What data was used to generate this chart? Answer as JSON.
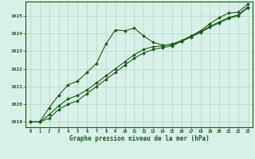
{
  "title": "Graphe pression niveau de la mer (hPa)",
  "bg_color": "#d8f0e8",
  "plot_bg_color": "#d8f0e8",
  "grid_color": "#b8d4b8",
  "line_color": "#1a5c1a",
  "xlim": [
    -0.5,
    23.5
  ],
  "ylim": [
    1018.7,
    1025.8
  ],
  "yticks": [
    1019,
    1020,
    1021,
    1022,
    1023,
    1024,
    1025
  ],
  "xticks": [
    0,
    1,
    2,
    3,
    4,
    5,
    6,
    7,
    8,
    9,
    10,
    11,
    12,
    13,
    14,
    15,
    16,
    17,
    18,
    19,
    20,
    21,
    22,
    23
  ],
  "series1": {
    "x": [
      0,
      1,
      2,
      3,
      4,
      5,
      6,
      7,
      8,
      9,
      10,
      11,
      12,
      13,
      14,
      15,
      16,
      17,
      18,
      19,
      20,
      21,
      22,
      23
    ],
    "y": [
      1019.0,
      1019.0,
      1019.8,
      1020.5,
      1021.1,
      1021.3,
      1021.8,
      1022.3,
      1023.4,
      1024.2,
      1024.15,
      1024.3,
      1023.85,
      1023.5,
      1023.35,
      1023.35,
      1023.55,
      1023.85,
      1024.15,
      1024.55,
      1024.9,
      1025.15,
      1025.2,
      1025.65
    ]
  },
  "series2": {
    "x": [
      0,
      1,
      2,
      3,
      4,
      5,
      6,
      7,
      8,
      9,
      10,
      11,
      12,
      13,
      14,
      15,
      16,
      17,
      18,
      19,
      20,
      21,
      22,
      23
    ],
    "y": [
      1019.0,
      1019.0,
      1019.4,
      1019.9,
      1020.3,
      1020.5,
      1020.8,
      1021.2,
      1021.6,
      1022.0,
      1022.4,
      1022.8,
      1023.1,
      1023.25,
      1023.3,
      1023.4,
      1023.6,
      1023.85,
      1024.1,
      1024.4,
      1024.65,
      1024.9,
      1025.05,
      1025.5
    ]
  },
  "series3": {
    "x": [
      0,
      1,
      2,
      3,
      4,
      5,
      6,
      7,
      8,
      9,
      10,
      11,
      12,
      13,
      14,
      15,
      16,
      17,
      18,
      19,
      20,
      21,
      22,
      23
    ],
    "y": [
      1019.0,
      1019.0,
      1019.2,
      1019.7,
      1020.0,
      1020.2,
      1020.6,
      1021.0,
      1021.4,
      1021.8,
      1022.2,
      1022.6,
      1022.9,
      1023.1,
      1023.2,
      1023.3,
      1023.55,
      1023.8,
      1024.05,
      1024.35,
      1024.6,
      1024.85,
      1025.0,
      1025.45
    ]
  }
}
